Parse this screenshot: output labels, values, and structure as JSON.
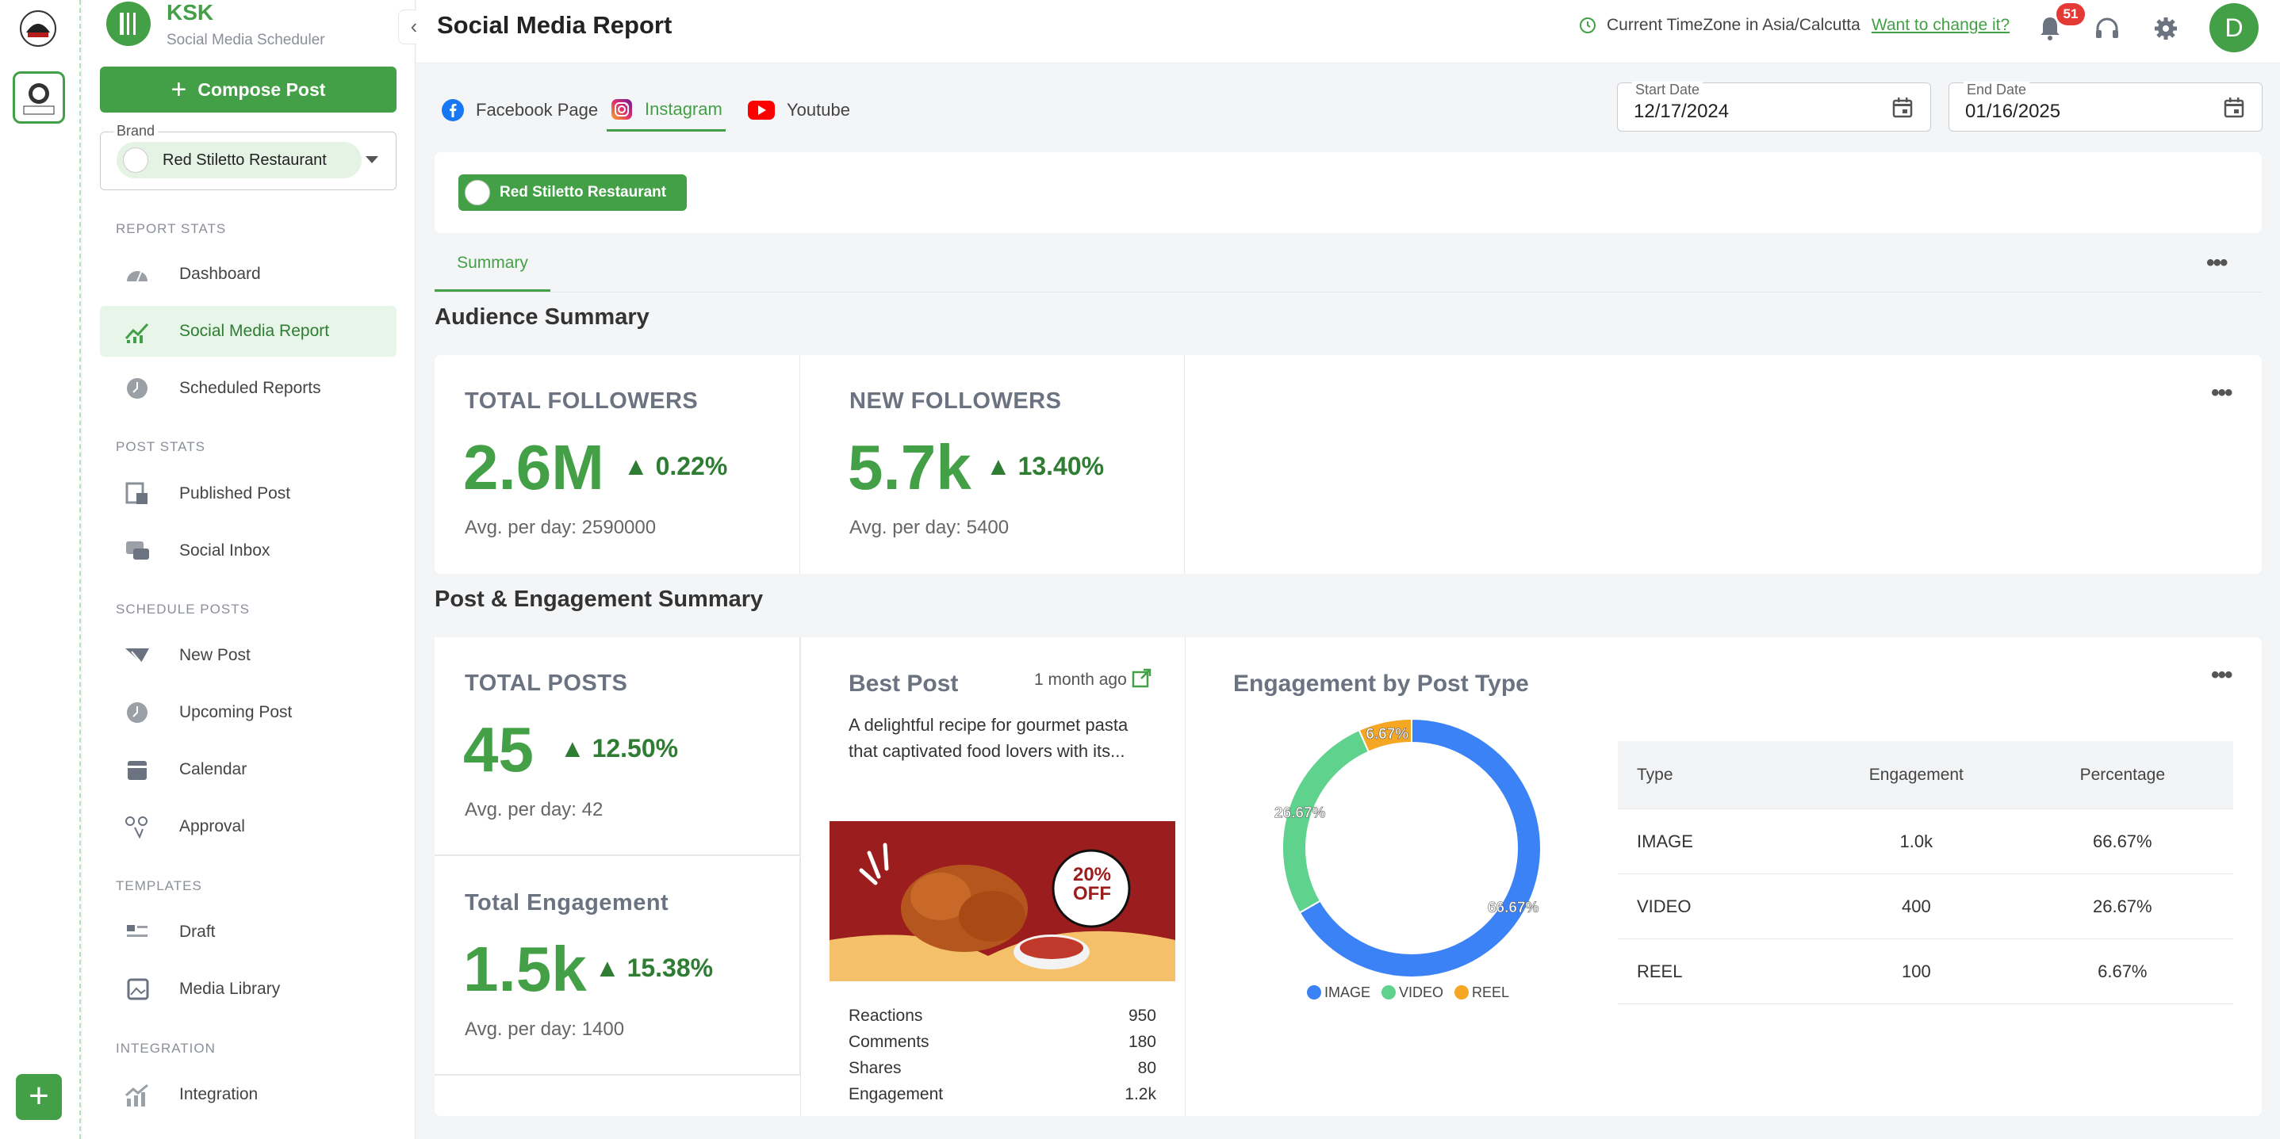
{
  "app": {
    "name": "KSK",
    "subtitle": "Social Media Scheduler",
    "compose_label": "Compose Post",
    "brand_label": "Brand",
    "brand_value": "Red Stiletto Restaurant",
    "brand_logo_text": "Red Stiletto Restaurant"
  },
  "sidebar": {
    "sections": {
      "report_stats": "REPORT STATS",
      "post_stats": "POST STATS",
      "schedule_posts": "SCHEDULE POSTS",
      "templates": "TEMPLATES",
      "integration": "INTEGRATION"
    },
    "items": [
      {
        "label": "Dashboard",
        "icon": "gauge-icon"
      },
      {
        "label": "Social Media Report",
        "icon": "chart-up-icon"
      },
      {
        "label": "Scheduled Reports",
        "icon": "clock-icon"
      },
      {
        "label": "Published Post",
        "icon": "published-icon"
      },
      {
        "label": "Social Inbox",
        "icon": "inbox-icon"
      },
      {
        "label": "New Post",
        "icon": "send-icon"
      },
      {
        "label": "Upcoming Post",
        "icon": "clock-icon"
      },
      {
        "label": "Calendar",
        "icon": "calendar-icon"
      },
      {
        "label": "Approval",
        "icon": "approval-icon"
      },
      {
        "label": "Draft",
        "icon": "draft-icon"
      },
      {
        "label": "Media Library",
        "icon": "media-icon"
      },
      {
        "label": "Integration",
        "icon": "integration-icon"
      }
    ]
  },
  "header": {
    "title": "Social Media Report",
    "timezone_text": "Current TimeZone in Asia/Calcutta",
    "timezone_link": "Want to change it?",
    "notification_count": "51",
    "avatar_letter": "D"
  },
  "platform_tabs": [
    {
      "label": "Facebook Page",
      "icon": "facebook-icon"
    },
    {
      "label": "Instagram",
      "icon": "instagram-icon",
      "active": true
    },
    {
      "label": "Youtube",
      "icon": "youtube-icon"
    }
  ],
  "dates": {
    "start_label": "Start Date",
    "start_value": "12/17/2024",
    "end_label": "End Date",
    "end_value": "01/16/2025"
  },
  "selected_brand_chip": "Red Stiletto Restaurant",
  "sub_tabs": [
    {
      "label": "Summary",
      "active": true
    }
  ],
  "audience": {
    "title": "Audience Summary",
    "total_followers": {
      "label": "TOTAL FOLLOWERS",
      "value": "2.6M",
      "change": "0.22%",
      "avg": "Avg. per day: 2590000"
    },
    "new_followers": {
      "label": "NEW FOLLOWERS",
      "value": "5.7k",
      "change": "13.40%",
      "avg": "Avg. per day: 5400"
    }
  },
  "engagement_section": {
    "title": "Post & Engagement Summary",
    "total_posts": {
      "label": "TOTAL POSTS",
      "value": "45",
      "change": "12.50%",
      "avg": "Avg. per day: 42"
    },
    "total_engagement": {
      "label": "Total Engagement",
      "value": "1.5k",
      "change": "15.38%",
      "avg": "Avg. per day: 1400"
    },
    "best_post": {
      "title": "Best Post",
      "time": "1 month ago",
      "text": "A delightful recipe for gourmet pasta that captivated food lovers with its...",
      "image_badge": "20% OFF",
      "stats": [
        {
          "label": "Reactions",
          "value": "950"
        },
        {
          "label": "Comments",
          "value": "180"
        },
        {
          "label": "Shares",
          "value": "80"
        },
        {
          "label": "Engagement",
          "value": "1.2k"
        }
      ]
    }
  },
  "engagement_by_type": {
    "title": "Engagement by Post Type",
    "table_headers": [
      "Type",
      "Engagement",
      "Percentage"
    ],
    "rows": [
      {
        "type": "IMAGE",
        "engagement": "1.0k",
        "percentage": "66.67%"
      },
      {
        "type": "VIDEO",
        "engagement": "400",
        "percentage": "26.67%"
      },
      {
        "type": "REEL",
        "engagement": "100",
        "percentage": "6.67%"
      }
    ]
  },
  "chart_data": {
    "type": "pie",
    "title": "Engagement by Post Type",
    "categories": [
      "IMAGE",
      "VIDEO",
      "REEL"
    ],
    "values": [
      66.67,
      26.67,
      6.67
    ],
    "labels": [
      "66.67%",
      "26.67%",
      "6.67%"
    ],
    "colors": [
      "#3b82f6",
      "#5fd38d",
      "#f5a623"
    ],
    "donut": true,
    "legend": "bottom"
  },
  "colors": {
    "accent": "#43a047",
    "badge": "#e53935"
  }
}
